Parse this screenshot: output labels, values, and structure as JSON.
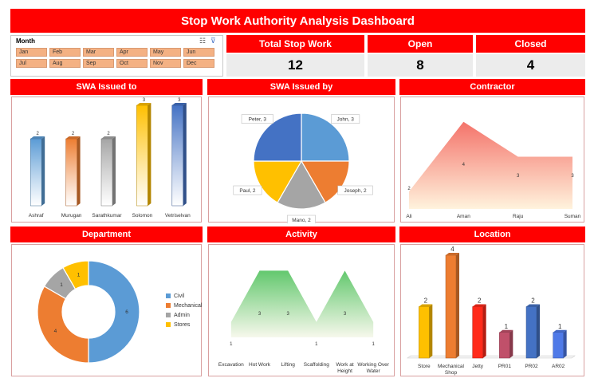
{
  "dashboard": {
    "title": "Stop Work Authority Analysis Dashboard"
  },
  "slicer": {
    "label": "Month",
    "months": [
      "Jan",
      "Feb",
      "Mar",
      "Apr",
      "May",
      "Jun",
      "Jul",
      "Aug",
      "Sep",
      "Oct",
      "Nov",
      "Dec"
    ],
    "icons": [
      "multi-select-icon",
      "clear-filter-icon"
    ]
  },
  "kpis": [
    {
      "label": "Total Stop Work",
      "value": "12"
    },
    {
      "label": "Open",
      "value": "8"
    },
    {
      "label": "Closed",
      "value": "4"
    }
  ],
  "sections": {
    "issued_to": "SWA Issued to",
    "issued_by": "SWA Issued by",
    "contractor": "Contractor",
    "department": "Department",
    "activity": "Activity",
    "location": "Location"
  },
  "colors": {
    "accent": "#ff0000",
    "kpi_bg": "#ececec",
    "blue": "#4472c4",
    "orange": "#ed7d31",
    "gray": "#a5a5a5",
    "gold": "#ffc000",
    "green": "#70ad47"
  },
  "chart_data": [
    {
      "id": "issued_to",
      "type": "bar",
      "categories": [
        "Ashraf",
        "Murugan",
        "Sarathkumar",
        "Solomon",
        "Vetriselvan"
      ],
      "values": [
        2,
        2,
        2,
        3,
        3
      ],
      "colors": [
        "#5b9bd5",
        "#ed7d31",
        "#a5a5a5",
        "#ffc000",
        "#4472c4"
      ],
      "ylim": [
        0,
        3
      ]
    },
    {
      "id": "issued_by",
      "type": "pie",
      "labels": [
        "John, 3",
        "Joseph, 2",
        "Mano, 2",
        "Paul, 2",
        "Peter, 3"
      ],
      "values": [
        3,
        2,
        2,
        2,
        3
      ],
      "colors": [
        "#5b9bd5",
        "#ed7d31",
        "#a5a5a5",
        "#ffc000",
        "#4472c4"
      ]
    },
    {
      "id": "contractor",
      "type": "area",
      "categories": [
        "Ali",
        "Aman",
        "Raju",
        "Suman"
      ],
      "values": [
        2,
        4,
        3,
        3
      ]
    },
    {
      "id": "department",
      "type": "pie",
      "labels": [
        "Civil",
        "Mechanical",
        "Admin",
        "Stores"
      ],
      "values": [
        6,
        4,
        1,
        1
      ],
      "colors": [
        "#5b9bd5",
        "#ed7d31",
        "#a5a5a5",
        "#ffc000"
      ]
    },
    {
      "id": "activity",
      "type": "area",
      "categories": [
        "Excavation",
        "Hot Work",
        "Lifting",
        "Scaffolding",
        "Work at Height",
        "Working Over Water"
      ],
      "values": [
        1,
        3,
        3,
        1,
        3,
        1
      ]
    },
    {
      "id": "location",
      "type": "bar",
      "categories": [
        "Store",
        "Mechanical Shop",
        "Jetty",
        "PR01",
        "PR02",
        "AR02"
      ],
      "values": [
        2,
        4,
        2,
        1,
        2,
        1
      ],
      "colors": [
        "#ffc000",
        "#ed7d31",
        "#ff2a1a",
        "#c0506a",
        "#4472c4",
        "#4f7ae8"
      ],
      "ylim": [
        0,
        4
      ]
    }
  ]
}
